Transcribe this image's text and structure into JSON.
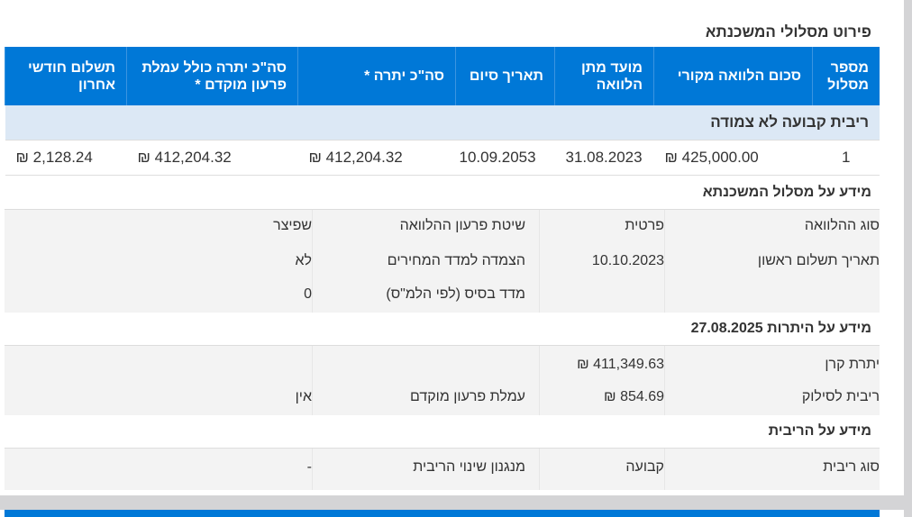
{
  "title": "פירוט מסלולי המשכנתא",
  "table": {
    "headers": [
      "מספר מסלול",
      "סכום הלוואה מקורי",
      "מועד מתן הלוואה",
      "תאריך סיום",
      "סה\"כ יתרה *",
      "סה\"כ יתרה כולל עמלת פרעון מוקדם *",
      "תשלום חודשי אחרון"
    ],
    "group": "ריבית קבועה לא צמודה",
    "row": [
      "1",
      "425,000.00 ₪",
      "31.08.2023",
      "10.09.2053",
      "412,204.32 ₪",
      "412,204.32 ₪",
      "2,128.24 ₪"
    ]
  },
  "track_info": {
    "heading": "מידע על מסלול המשכנתא",
    "rows": [
      {
        "l1": "סוג ההלוואה",
        "v1": "פרטית",
        "l2": "שיטת פרעון ההלוואה",
        "v2": "שפיצר"
      },
      {
        "l1": "תאריך תשלום ראשון",
        "v1": "10.10.2023",
        "l2": "הצמדה למדד המחירים",
        "v2": "לא"
      },
      {
        "l1": "",
        "v1": "",
        "l2": "מדד בסיס (לפי הלמ\"ס)",
        "v2": "0"
      }
    ]
  },
  "balance_info": {
    "heading": "מידע על היתרות 27.08.2025",
    "rows": [
      {
        "l1": "יתרת קרן",
        "v1": "411,349.63 ₪",
        "l2": "",
        "v2": ""
      },
      {
        "l1": "ריבית לסילוק",
        "v1": "854.69 ₪",
        "l2": "עמלת פרעון מוקדם",
        "v2": "אין"
      }
    ]
  },
  "interest_info": {
    "heading": "מידע על הריבית",
    "rows": [
      {
        "l1": "סוג ריבית",
        "v1": "קבועה",
        "l2": "מנגנון שינוי הריבית",
        "v2": "-"
      }
    ]
  },
  "colors": {
    "header_blue": "#0078d7",
    "group_bg": "#dce8f5"
  }
}
